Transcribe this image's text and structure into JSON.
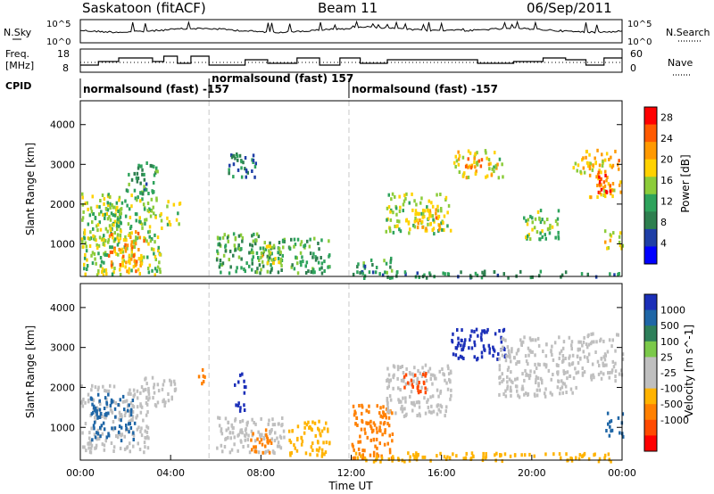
{
  "header": {
    "title": "Saskatoon (fitACF)",
    "beam": "Beam 11",
    "date": "06/Sep/2011"
  },
  "noise_panel": {
    "left_label": "N.Sky",
    "right_label": "N.Search",
    "left_ticks": [
      "10^5",
      "10^0"
    ],
    "right_ticks": [
      "10^5",
      "10^0"
    ]
  },
  "freq_panel": {
    "left_label_1": "Freq.",
    "left_label_2": "[MHz]",
    "right_label": "Nave",
    "left_ticks": [
      "18",
      "8"
    ],
    "right_ticks": [
      "60",
      "0"
    ],
    "freq_steps": [
      {
        "t": 0.0,
        "v": 12
      },
      {
        "t": 0.8,
        "v": 14
      },
      {
        "t": 1.7,
        "v": 16
      },
      {
        "t": 3.2,
        "v": 14
      },
      {
        "t": 3.7,
        "v": 17
      },
      {
        "t": 4.3,
        "v": 13
      },
      {
        "t": 4.9,
        "v": 17
      },
      {
        "t": 5.7,
        "v": 12
      },
      {
        "t": 7.3,
        "v": 15
      },
      {
        "t": 8.3,
        "v": 13
      },
      {
        "t": 9.6,
        "v": 16
      },
      {
        "t": 10.6,
        "v": 12
      },
      {
        "t": 11.5,
        "v": 16
      },
      {
        "t": 12.4,
        "v": 13
      },
      {
        "t": 13.6,
        "v": 15
      },
      {
        "t": 15.1,
        "v": 15
      },
      {
        "t": 17.6,
        "v": 13
      },
      {
        "t": 19.2,
        "v": 14
      },
      {
        "t": 20.5,
        "v": 16
      },
      {
        "t": 21.5,
        "v": 15
      },
      {
        "t": 22.4,
        "v": 12
      },
      {
        "t": 23.2,
        "v": 16
      },
      {
        "t": 24.0,
        "v": 16
      }
    ]
  },
  "cpid": {
    "label": "CPID",
    "segments": [
      {
        "start": 0.0,
        "end": 5.7,
        "text": "normalsound (fast) -157"
      },
      {
        "start": 5.7,
        "end": 11.9,
        "text": "normalsound (fast) 157"
      },
      {
        "start": 11.9,
        "end": 24.0,
        "text": "normalsound (fast) -157"
      }
    ]
  },
  "colors": {
    "power_scale": [
      "#0000ff",
      "#1f3fa6",
      "#2e7f4f",
      "#2ea35c",
      "#8ccc3a",
      "#ffd200",
      "#ff9900",
      "#ff5a00",
      "#ff0000"
    ],
    "velocity_scale": [
      "#1b2fb8",
      "#1f66a6",
      "#2e7f5a",
      "#7bc94a",
      "#bfbfbf",
      "#bfbfbf",
      "#ffb300",
      "#ff8000",
      "#ff4a00",
      "#ff0000"
    ]
  },
  "chart_data": [
    {
      "type": "heatmap",
      "name": "power",
      "ylabel": "Slant Range [km]",
      "xlim": [
        0,
        24
      ],
      "ylim": [
        180,
        4600
      ],
      "yticks": [
        "1000",
        "2000",
        "3000",
        "4000"
      ],
      "colorbar": {
        "label": "Power [dB]",
        "ticks": [
          "4",
          "8",
          "12",
          "16",
          "20",
          "24",
          "28"
        ],
        "range": [
          0,
          30
        ]
      },
      "regions": [
        {
          "t0": 0.0,
          "t1": 3.6,
          "r0": 250,
          "r1": 2300,
          "v": 15
        },
        {
          "t0": 1.2,
          "t1": 2.8,
          "r0": 350,
          "r1": 1400,
          "v": 22
        },
        {
          "t0": 0.3,
          "t1": 1.8,
          "r0": 1100,
          "r1": 2000,
          "v": 14
        },
        {
          "t0": 3.8,
          "t1": 4.4,
          "r0": 1500,
          "r1": 2200,
          "v": 16
        },
        {
          "t0": 2.0,
          "t1": 3.4,
          "r0": 2300,
          "r1": 3100,
          "v": 10
        },
        {
          "t0": 6.0,
          "t1": 9.0,
          "r0": 300,
          "r1": 1300,
          "v": 12
        },
        {
          "t0": 7.8,
          "t1": 9.0,
          "r0": 500,
          "r1": 1000,
          "v": 18
        },
        {
          "t0": 6.5,
          "t1": 7.8,
          "r0": 2700,
          "r1": 3300,
          "v": 8
        },
        {
          "t0": 9.2,
          "t1": 11.0,
          "r0": 300,
          "r1": 1200,
          "v": 12
        },
        {
          "t0": 12.2,
          "t1": 13.8,
          "r0": 300,
          "r1": 700,
          "v": 10
        },
        {
          "t0": 13.5,
          "t1": 16.4,
          "r0": 1300,
          "r1": 2300,
          "v": 16
        },
        {
          "t0": 14.7,
          "t1": 16.1,
          "r0": 1400,
          "r1": 1900,
          "v": 20
        },
        {
          "t0": 16.5,
          "t1": 18.8,
          "r0": 2700,
          "r1": 3400,
          "v": 17
        },
        {
          "t0": 17.0,
          "t1": 17.8,
          "r0": 2900,
          "r1": 3200,
          "v": 22
        },
        {
          "t0": 19.6,
          "t1": 21.2,
          "r0": 1100,
          "r1": 1900,
          "v": 14
        },
        {
          "t0": 21.8,
          "t1": 22.6,
          "r0": 2800,
          "r1": 3400,
          "v": 18
        },
        {
          "t0": 22.5,
          "t1": 23.9,
          "r0": 2200,
          "r1": 3400,
          "v": 20
        },
        {
          "t0": 22.8,
          "t1": 23.5,
          "r0": 2300,
          "r1": 2800,
          "v": 26
        },
        {
          "t0": 23.2,
          "t1": 24.0,
          "r0": 900,
          "r1": 1400,
          "v": 18
        },
        {
          "t0": 12.0,
          "t1": 24.0,
          "r0": 180,
          "r1": 350,
          "v": 9
        }
      ]
    },
    {
      "type": "heatmap",
      "name": "velocity",
      "ylabel": "Slant Range [km]",
      "xlabel": "Time UT",
      "xlim": [
        0,
        24
      ],
      "ylim": [
        180,
        4600
      ],
      "yticks": [
        "1000",
        "2000",
        "3000",
        "4000"
      ],
      "xticks": [
        "00:00",
        "04:00",
        "08:00",
        "12:00",
        "16:00",
        "20:00",
        "00:00"
      ],
      "colorbar": {
        "label": "Velocity [m s^-1]",
        "ticks": [
          "1000",
          "500",
          "100",
          "25",
          "-25",
          "-100",
          "-500",
          "-1000"
        ]
      },
      "regions": [
        {
          "t0": 0.0,
          "t1": 3.0,
          "r0": 400,
          "r1": 2100,
          "v": 0
        },
        {
          "t0": 0.4,
          "t1": 2.4,
          "r0": 700,
          "r1": 1900,
          "v": 150
        },
        {
          "t0": 2.8,
          "t1": 4.2,
          "r0": 1500,
          "r1": 2300,
          "v": 0
        },
        {
          "t0": 5.2,
          "t1": 5.6,
          "r0": 2100,
          "r1": 2500,
          "v": -200
        },
        {
          "t0": 6.0,
          "t1": 9.0,
          "r0": 400,
          "r1": 1300,
          "v": 0
        },
        {
          "t0": 7.5,
          "t1": 8.5,
          "r0": 400,
          "r1": 1000,
          "v": -120
        },
        {
          "t0": 6.8,
          "t1": 7.3,
          "r0": 1400,
          "r1": 2400,
          "v": 800
        },
        {
          "t0": 9.2,
          "t1": 11.0,
          "r0": 300,
          "r1": 1200,
          "v": -60
        },
        {
          "t0": 12.0,
          "t1": 13.8,
          "r0": 250,
          "r1": 1600,
          "v": -120
        },
        {
          "t0": 13.5,
          "t1": 16.4,
          "r0": 1300,
          "r1": 2600,
          "v": 0
        },
        {
          "t0": 14.3,
          "t1": 15.4,
          "r0": 1900,
          "r1": 2400,
          "v": -600
        },
        {
          "t0": 16.4,
          "t1": 18.8,
          "r0": 2700,
          "r1": 3500,
          "v": 600
        },
        {
          "t0": 18.5,
          "t1": 22.0,
          "r0": 1800,
          "r1": 3300,
          "v": 0
        },
        {
          "t0": 22.0,
          "t1": 24.0,
          "r0": 2200,
          "r1": 3400,
          "v": 0
        },
        {
          "t0": 23.2,
          "t1": 24.0,
          "r0": 800,
          "r1": 1400,
          "v": 200
        },
        {
          "t0": 12.0,
          "t1": 24.0,
          "r0": 180,
          "r1": 400,
          "v": -60
        }
      ]
    }
  ]
}
